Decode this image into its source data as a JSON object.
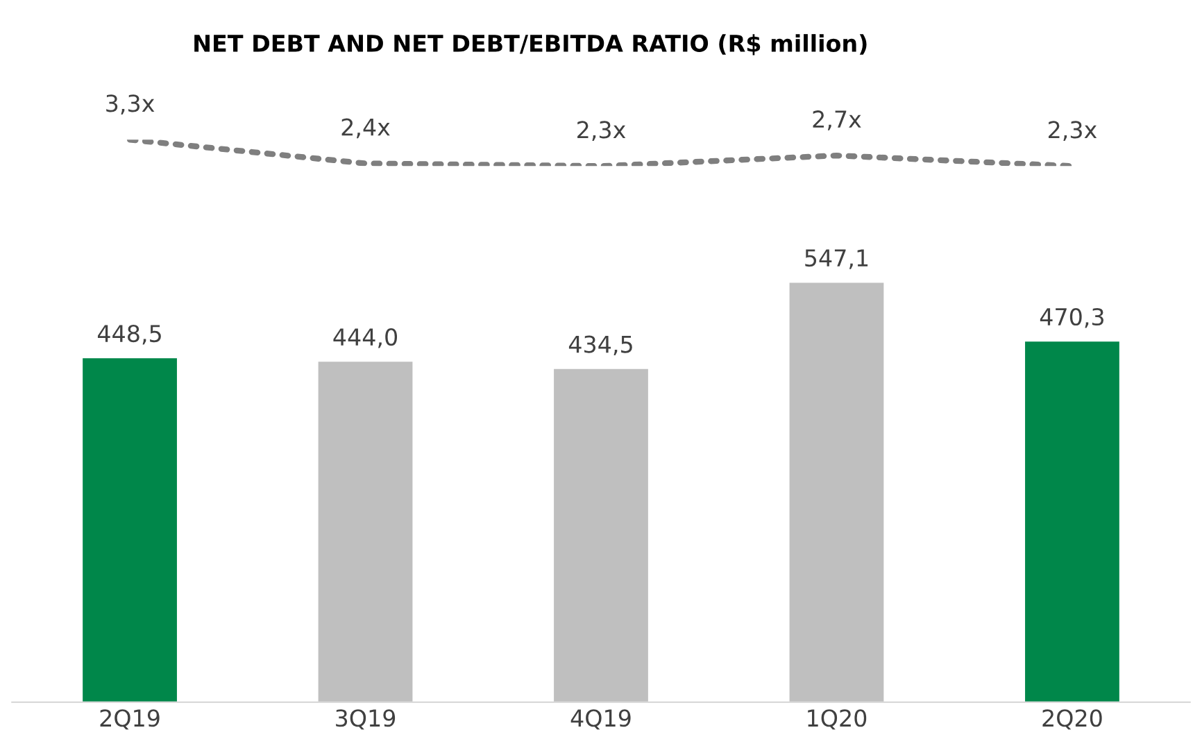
{
  "chart_data": [
    {
      "type": "line",
      "title": "NET DEBT AND NET DEBT/EBITDA RATIO (R$ million)",
      "categories": [
        null,
        null,
        null,
        null,
        null
      ],
      "color": "#7f7f7f",
      "line_style": "dotted",
      "marker": "none",
      "values": [
        3.3,
        2.4,
        2.3,
        2.7,
        2.3
      ],
      "value_labels": [
        "3,3x",
        "2,4x",
        "2,3x",
        "2,7x",
        "2,3x"
      ],
      "tick_labels": false,
      "legend": false
    },
    {
      "type": "bar",
      "categories": [
        "2Q19",
        "3Q19",
        "4Q19",
        "1Q20",
        "2Q20"
      ],
      "colors": [
        "#00874a",
        "#bfbfbf",
        "#bfbfbf",
        "#bfbfbf",
        "#00874a"
      ],
      "values": [
        448.5,
        444.0,
        434.5,
        547.1,
        470.3
      ],
      "value_labels": [
        "448,5",
        "444,0",
        "434,5",
        "547,1",
        "470,3"
      ],
      "tick_labels": "x",
      "legend": false
    }
  ]
}
